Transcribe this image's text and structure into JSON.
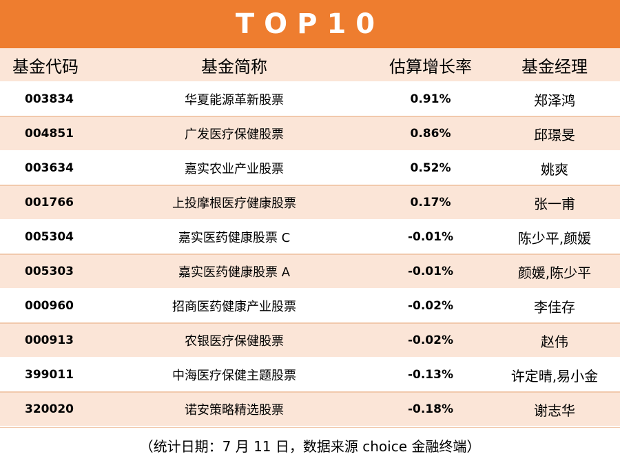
{
  "banner": {
    "title": "TOP10"
  },
  "header": [
    "基金代码",
    "基金简称",
    "估算增长率",
    "基金经理"
  ],
  "rows": [
    {
      "code": "003834",
      "name": "华夏能源革新股票",
      "rate": "0.91%",
      "manager": "郑泽鸿"
    },
    {
      "code": "004851",
      "name": "广发医疗保健股票",
      "rate": "0.86%",
      "manager": "邱璟旻"
    },
    {
      "code": "003634",
      "name": "嘉实农业产业股票",
      "rate": "0.52%",
      "manager": "姚爽"
    },
    {
      "code": "001766",
      "name": "上投摩根医疗健康股票",
      "rate": "0.17%",
      "manager": "张一甫"
    },
    {
      "code": "005304",
      "name": "嘉实医药健康股票 C",
      "rate": "-0.01%",
      "manager": "陈少平,颜媛"
    },
    {
      "code": "005303",
      "name": "嘉实医药健康股票 A",
      "rate": "-0.01%",
      "manager": "颜媛,陈少平"
    },
    {
      "code": "000960",
      "name": "招商医药健康产业股票",
      "rate": "-0.02%",
      "manager": "李佳存"
    },
    {
      "code": "000913",
      "name": "农银医疗保健股票",
      "rate": "-0.02%",
      "manager": "赵伟"
    },
    {
      "code": "399011",
      "name": "中海医疗保健主题股票",
      "rate": "-0.13%",
      "manager": "许定晴,易小金"
    },
    {
      "code": "320020",
      "name": "诺安策略精选股票",
      "rate": "-0.18%",
      "manager": "谢志华"
    }
  ],
  "footer": {
    "note": "（统计日期：7 月 11 日，数据来源 choice 金融终端）"
  },
  "colors": {
    "accent": "#ee7d2f",
    "band": "#fbe5d7"
  }
}
